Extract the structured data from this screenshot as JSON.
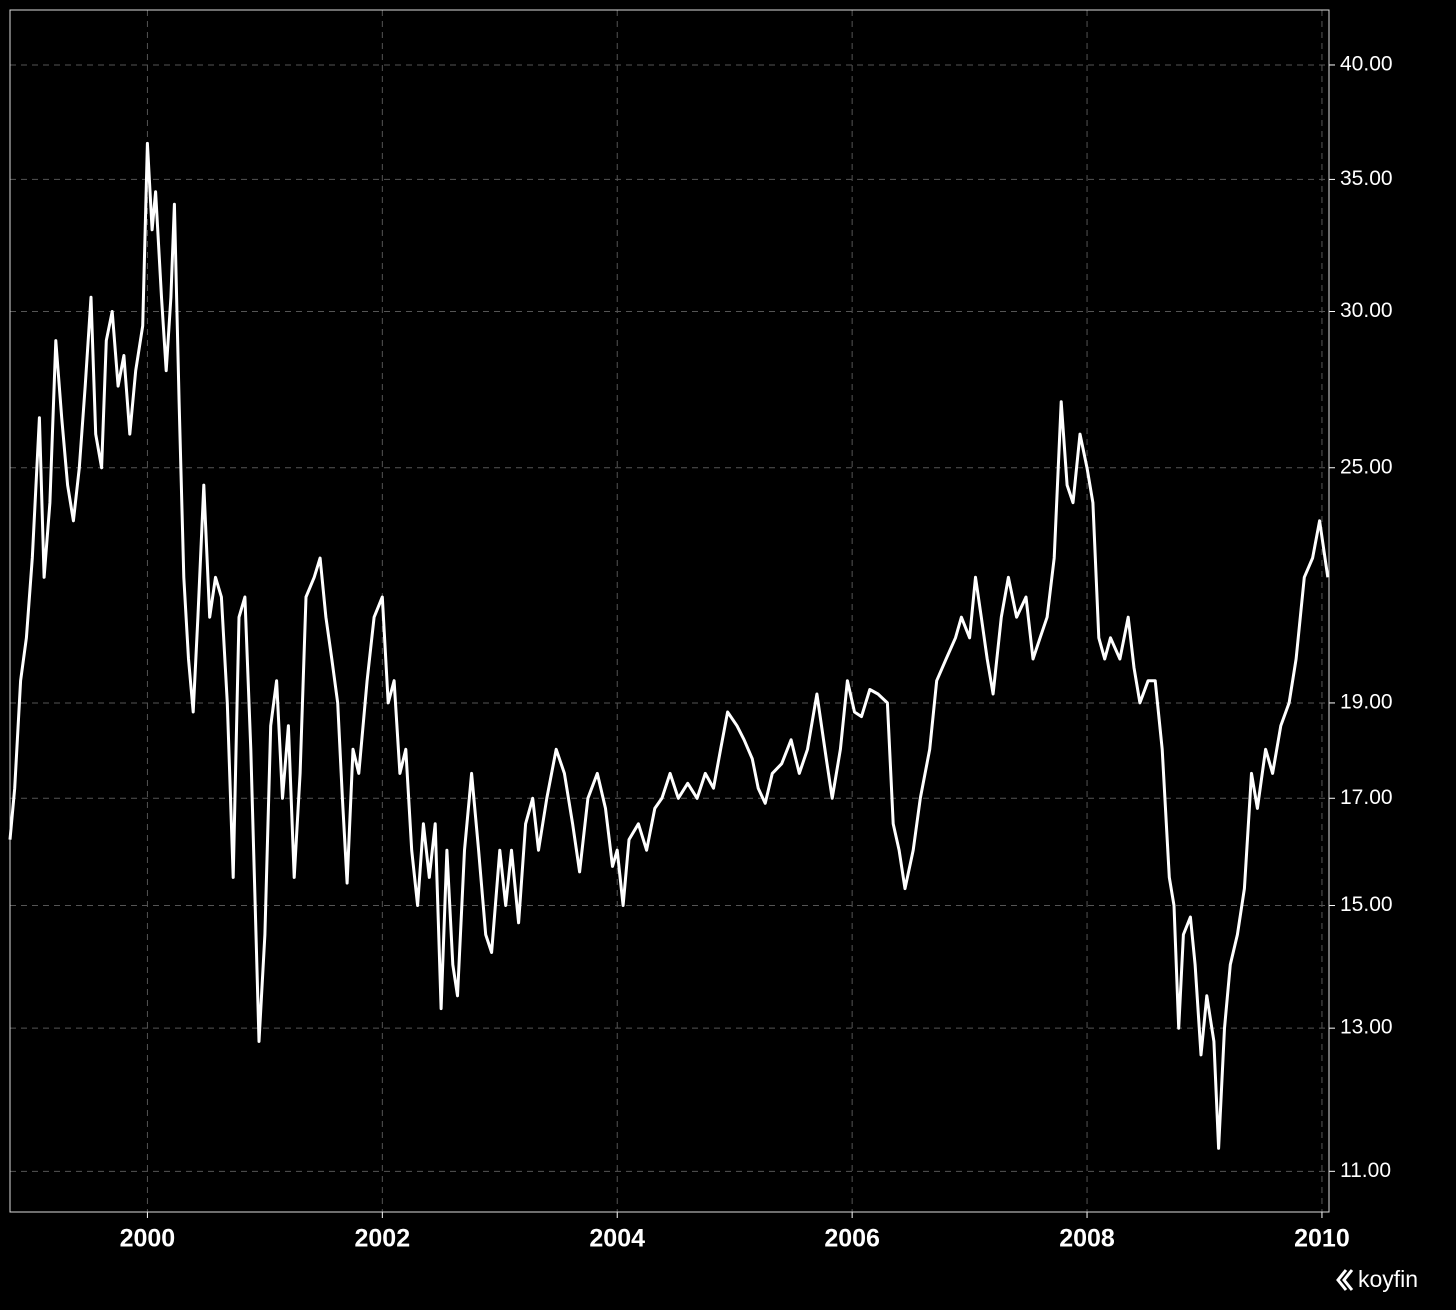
{
  "chart_data": {
    "type": "line",
    "x": [
      1998.83,
      1998.87,
      1998.92,
      1998.97,
      1999.02,
      1999.08,
      1999.12,
      1999.17,
      1999.22,
      1999.27,
      1999.32,
      1999.37,
      1999.42,
      1999.47,
      1999.52,
      1999.56,
      1999.61,
      1999.65,
      1999.7,
      1999.75,
      1999.8,
      1999.85,
      1999.9,
      1999.96,
      2000.0,
      2000.04,
      2000.07,
      2000.12,
      2000.16,
      2000.2,
      2000.23,
      2000.27,
      2000.31,
      2000.35,
      2000.39,
      2000.43,
      2000.48,
      2000.53,
      2000.58,
      2000.63,
      2000.68,
      2000.73,
      2000.78,
      2000.83,
      2000.88,
      2000.95,
      2001.0,
      2001.05,
      2001.1,
      2001.15,
      2001.2,
      2001.25,
      2001.3,
      2001.35,
      2001.42,
      2001.47,
      2001.52,
      2001.57,
      2001.62,
      2001.66,
      2001.7,
      2001.75,
      2001.8,
      2001.87,
      2001.93,
      2002.0,
      2002.05,
      2002.1,
      2002.15,
      2002.2,
      2002.25,
      2002.3,
      2002.35,
      2002.4,
      2002.45,
      2002.5,
      2002.55,
      2002.6,
      2002.64,
      2002.7,
      2002.76,
      2002.82,
      2002.88,
      2002.93,
      2003.0,
      2003.05,
      2003.1,
      2003.16,
      2003.22,
      2003.28,
      2003.33,
      2003.4,
      2003.48,
      2003.55,
      2003.62,
      2003.68,
      2003.75,
      2003.83,
      2003.9,
      2003.96,
      2004.0,
      2004.05,
      2004.1,
      2004.18,
      2004.25,
      2004.32,
      2004.38,
      2004.45,
      2004.52,
      2004.6,
      2004.68,
      2004.75,
      2004.82,
      2004.88,
      2004.94,
      2005.02,
      2005.08,
      2005.15,
      2005.2,
      2005.26,
      2005.32,
      2005.4,
      2005.48,
      2005.55,
      2005.62,
      2005.7,
      2005.78,
      2005.83,
      2005.9,
      2005.96,
      2006.02,
      2006.08,
      2006.15,
      2006.22,
      2006.3,
      2006.35,
      2006.4,
      2006.45,
      2006.52,
      2006.58,
      2006.66,
      2006.72,
      2006.8,
      2006.88,
      2006.93,
      2007.0,
      2007.05,
      2007.1,
      2007.15,
      2007.2,
      2007.27,
      2007.33,
      2007.4,
      2007.48,
      2007.54,
      2007.6,
      2007.66,
      2007.72,
      2007.78,
      2007.83,
      2007.88,
      2007.94,
      2008.0,
      2008.05,
      2008.1,
      2008.15,
      2008.2,
      2008.28,
      2008.35,
      2008.4,
      2008.45,
      2008.52,
      2008.58,
      2008.64,
      2008.7,
      2008.74,
      2008.78,
      2008.82,
      2008.88,
      2008.92,
      2008.97,
      2009.02,
      2009.08,
      2009.12,
      2009.17,
      2009.22,
      2009.28,
      2009.34,
      2009.4,
      2009.45,
      2009.52,
      2009.58,
      2009.65,
      2009.72,
      2009.78,
      2009.85,
      2009.92,
      2009.98,
      2010.05
    ],
    "series": [
      {
        "color": "#ffffff",
        "values": [
          16.2,
          17.2,
          19.5,
          20.5,
          22.5,
          26.5,
          22.0,
          24.0,
          29.0,
          26.5,
          24.5,
          23.5,
          25.0,
          27.5,
          30.5,
          26.0,
          25.0,
          29.0,
          30.0,
          27.5,
          28.5,
          26.0,
          28.0,
          29.5,
          36.5,
          33.0,
          34.5,
          30.5,
          28.0,
          30.5,
          34.0,
          27.0,
          22.0,
          20.0,
          18.8,
          21.0,
          24.5,
          21.0,
          22.0,
          21.5,
          19.0,
          15.5,
          21.0,
          21.5,
          18.0,
          12.8,
          14.5,
          18.5,
          19.5,
          17.0,
          18.5,
          15.5,
          17.5,
          21.5,
          22.0,
          22.5,
          21.0,
          20.0,
          19.0,
          17.0,
          15.4,
          18.0,
          17.5,
          19.5,
          21.0,
          21.5,
          19.0,
          19.5,
          17.5,
          18.0,
          16.0,
          15.0,
          16.5,
          15.5,
          16.5,
          13.3,
          16.0,
          14.0,
          13.5,
          16.0,
          17.5,
          16.0,
          14.5,
          14.2,
          16.0,
          15.0,
          16.0,
          14.7,
          16.5,
          17.0,
          16.0,
          17.0,
          18.0,
          17.5,
          16.5,
          15.6,
          17.0,
          17.5,
          16.8,
          15.7,
          16.0,
          15.0,
          16.2,
          16.5,
          16.0,
          16.8,
          17.0,
          17.5,
          17.0,
          17.3,
          17.0,
          17.5,
          17.2,
          18.0,
          18.8,
          18.5,
          18.2,
          17.8,
          17.2,
          16.9,
          17.5,
          17.7,
          18.2,
          17.5,
          18.0,
          19.2,
          17.8,
          17.0,
          18.0,
          19.5,
          18.8,
          18.7,
          19.3,
          19.2,
          19.0,
          16.5,
          16.0,
          15.3,
          16.0,
          17.0,
          18.0,
          19.5,
          20.0,
          20.5,
          21.0,
          20.5,
          22.0,
          21.0,
          20.0,
          19.2,
          21.0,
          22.0,
          21.0,
          21.5,
          20.0,
          20.5,
          21.0,
          22.5,
          27.0,
          24.5,
          24.0,
          26.0,
          25.0,
          24.0,
          20.5,
          20.0,
          20.5,
          20.0,
          21.0,
          19.8,
          19.0,
          19.5,
          19.5,
          18.0,
          15.5,
          15.0,
          13.0,
          14.5,
          14.8,
          14.0,
          12.6,
          13.5,
          12.8,
          11.3,
          13.0,
          14.0,
          14.5,
          15.3,
          17.5,
          16.8,
          18.0,
          17.5,
          18.5,
          19.0,
          20.0,
          22.0,
          22.5,
          23.5,
          22.0
        ]
      }
    ],
    "xlim": [
      1998.83,
      2010.06
    ],
    "xticks": [
      2000,
      2002,
      2004,
      2006,
      2008,
      2010
    ],
    "ylim": [
      10.49,
      42.65
    ],
    "log_y": true,
    "grid": true,
    "yticks": [
      {
        "value": 11,
        "label": "11.00"
      },
      {
        "value": 13,
        "label": "13.00"
      },
      {
        "value": 15,
        "label": "15.00"
      },
      {
        "value": 17,
        "label": "17.00"
      },
      {
        "value": 19,
        "label": "19.00"
      },
      {
        "value": 25,
        "label": "25.00"
      },
      {
        "value": 30,
        "label": "30.00"
      },
      {
        "value": 35,
        "label": "35.00"
      },
      {
        "value": 40,
        "label": "40.00"
      }
    ]
  },
  "brand": "koyfin"
}
